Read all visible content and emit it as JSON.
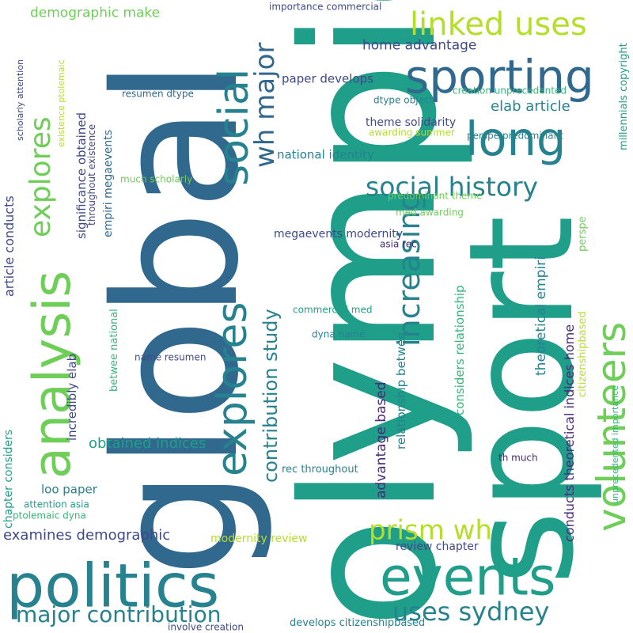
{
  "background": "#ffffff",
  "palette": [
    "#31688e",
    "#26828e",
    "#1f9e89",
    "#35b779",
    "#6ece58",
    "#b5de2b",
    "#3e4989",
    "#482878"
  ],
  "words": [
    {
      "text": "olympics",
      "color": "#1f9e89"
    },
    {
      "text": "global",
      "color": "#31688e"
    },
    {
      "text": "sport",
      "color": "#1f9e89"
    },
    {
      "text": "politics",
      "color": "#26828e"
    },
    {
      "text": "events",
      "color": "#1f9e89"
    },
    {
      "text": "analysis",
      "color": "#6ece58"
    },
    {
      "text": "explores",
      "color": "#26828e"
    },
    {
      "text": "social",
      "color": "#26828e"
    },
    {
      "text": "sporting",
      "color": "#31688e"
    },
    {
      "text": "long",
      "color": "#26828e"
    },
    {
      "text": "linked uses",
      "color": "#b5de2b"
    },
    {
      "text": "volunteers",
      "color": "#6ece58"
    },
    {
      "text": "increasing",
      "color": "#26828e"
    },
    {
      "text": "explores",
      "color": "#6ece58"
    },
    {
      "text": "wh major",
      "color": "#31688e"
    },
    {
      "text": "social history",
      "color": "#26828e"
    },
    {
      "text": "uses sydney",
      "color": "#26828e"
    },
    {
      "text": "major contribution",
      "color": "#26828e"
    },
    {
      "text": "prism wh",
      "color": "#b5de2b"
    },
    {
      "text": "contribution study",
      "color": "#26828e"
    },
    {
      "text": "examines demographic",
      "color": "#3e4989"
    },
    {
      "text": "demographic make",
      "color": "#6ece58"
    },
    {
      "text": "home advantage",
      "color": "#3e4989"
    },
    {
      "text": "paper develops",
      "color": "#3e4989"
    },
    {
      "text": "elab article",
      "color": "#26828e"
    },
    {
      "text": "theme solidarity",
      "color": "#3e4989"
    },
    {
      "text": "national identity",
      "color": "#26828e"
    },
    {
      "text": "obtained indices",
      "color": "#1f9e89"
    },
    {
      "text": "megaevents modernity",
      "color": "#3e4989"
    },
    {
      "text": "advantage based",
      "color": "#482878"
    },
    {
      "text": "relationship betwee",
      "color": "#26828e"
    },
    {
      "text": "considers relationship",
      "color": "#35b779"
    },
    {
      "text": "theoretical empiri",
      "color": "#26828e"
    },
    {
      "text": "conducts theoretical indices home",
      "color": "#482878"
    },
    {
      "text": "perspe",
      "color": "#6ece58"
    },
    {
      "text": "citizenshipbased",
      "color": "#b5de2b"
    },
    {
      "text": "unprecedented importance",
      "color": "#35b779"
    },
    {
      "text": "millennials copyright",
      "color": "#1f9e89"
    },
    {
      "text": "significance obtained",
      "color": "#3e4989"
    },
    {
      "text": "empiri megaevents",
      "color": "#31688e"
    },
    {
      "text": "article conducts",
      "color": "#3e4989"
    },
    {
      "text": "incredibly elab",
      "color": "#3e4989"
    },
    {
      "text": "chapter considers",
      "color": "#1f9e89"
    },
    {
      "text": "betwee national",
      "color": "#35b779"
    },
    {
      "text": "importance commercial",
      "color": "#3e4989"
    },
    {
      "text": "creation unprecedented",
      "color": "#35b779"
    },
    {
      "text": "resumen dtype",
      "color": "#31688e"
    },
    {
      "text": "dtype object",
      "color": "#26828e"
    },
    {
      "text": "perspe predominant",
      "color": "#26828e"
    },
    {
      "text": "awarding summer",
      "color": "#b5de2b"
    },
    {
      "text": "much scholarly",
      "color": "#6ece58"
    },
    {
      "text": "throughout existence",
      "color": "#3e4989"
    },
    {
      "text": "existence ptolemaic",
      "color": "#b5de2b"
    },
    {
      "text": "scholarly attention",
      "color": "#3e4989"
    },
    {
      "text": "predominant theme",
      "color": "#6ece58"
    },
    {
      "text": "med awarding",
      "color": "#6ece58"
    },
    {
      "text": "asia rec",
      "color": "#482878"
    },
    {
      "text": "commercial med",
      "color": "#1f9e89"
    },
    {
      "text": "dyna name",
      "color": "#26828e"
    },
    {
      "text": "name resumen",
      "color": "#3e4989"
    },
    {
      "text": "loo paper",
      "color": "#26828e"
    },
    {
      "text": "attention asia",
      "color": "#1f9e89"
    },
    {
      "text": "ptolemaic dyna",
      "color": "#35b779"
    },
    {
      "text": "modernity review",
      "color": "#b5de2b"
    },
    {
      "text": "review chapter",
      "color": "#3e4989"
    },
    {
      "text": "rec throughout",
      "color": "#26828e"
    },
    {
      "text": "th much",
      "color": "#482878"
    },
    {
      "text": "develops citizenshipbased",
      "color": "#26828e"
    },
    {
      "text": "involve creation",
      "color": "#3e4989"
    }
  ]
}
